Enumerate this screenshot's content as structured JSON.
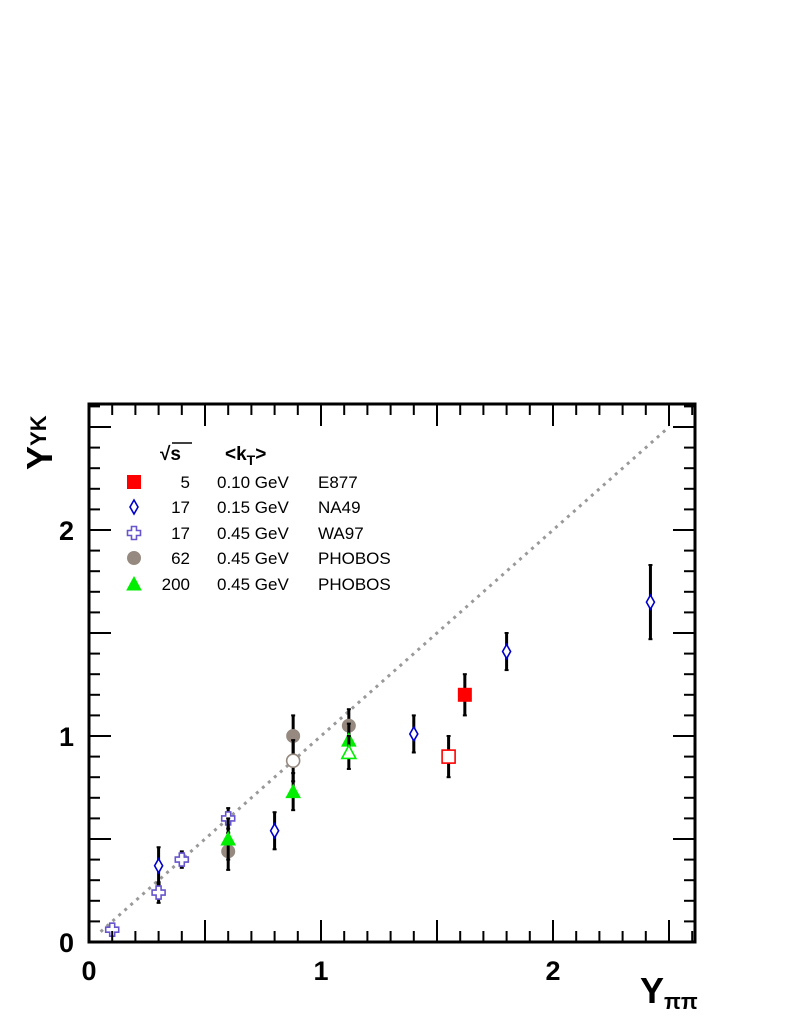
{
  "chart_data": {
    "type": "scatter",
    "xlabel": {
      "main": "Y",
      "sub": "ππ"
    },
    "ylabel": {
      "main": "Y",
      "sub": "YK"
    },
    "xlim": [
      0,
      2.6
    ],
    "ylim": [
      0,
      2.55
    ],
    "x_ticks": [
      0,
      1,
      2
    ],
    "y_ticks": [
      0,
      1,
      2
    ],
    "x_tick_labels": [
      "0",
      "1",
      "2"
    ],
    "y_tick_labels": [
      "0",
      "1",
      "2"
    ],
    "grid": false,
    "legend_position": "top-left",
    "legend_headers": {
      "sqrt_s": "√s",
      "kt": "<k",
      "kt_sub": "T",
      "kt_close": ">"
    },
    "reference_line": {
      "x": [
        0.05,
        2.5
      ],
      "y": [
        0.05,
        2.5
      ],
      "style": "dotted",
      "color": "#999999"
    },
    "series": [
      {
        "name": "E877",
        "sqrt_s": "5",
        "kt": "0.10 GeV",
        "marker": "square",
        "color": "#ff0000",
        "points": [
          {
            "x": 1.62,
            "y": 1.2,
            "err": 0.1,
            "filled": true
          },
          {
            "x": 1.55,
            "y": 0.9,
            "err": 0.1,
            "filled": false
          }
        ]
      },
      {
        "name": "NA49",
        "sqrt_s": "17",
        "kt": "0.15 GeV",
        "marker": "diamond",
        "color": "#0000cc",
        "points": [
          {
            "x": 0.3,
            "y": 0.37,
            "err": 0.09,
            "filled": false
          },
          {
            "x": 0.8,
            "y": 0.54,
            "err": 0.09,
            "filled": false
          },
          {
            "x": 1.4,
            "y": 1.01,
            "err": 0.09,
            "filled": false
          },
          {
            "x": 1.8,
            "y": 1.41,
            "err": 0.09,
            "filled": false
          },
          {
            "x": 2.42,
            "y": 1.65,
            "err": 0.18,
            "filled": false
          }
        ]
      },
      {
        "name": "WA97",
        "sqrt_s": "17",
        "kt": "0.45 GeV",
        "marker": "cross",
        "color": "#6655cc",
        "points": [
          {
            "x": 0.1,
            "y": 0.06,
            "err": 0.03,
            "filled": false
          },
          {
            "x": 0.3,
            "y": 0.24,
            "err": 0.05,
            "filled": false
          },
          {
            "x": 0.4,
            "y": 0.4,
            "err": 0.04,
            "filled": false
          },
          {
            "x": 0.6,
            "y": 0.6,
            "err": 0.05,
            "filled": false
          }
        ]
      },
      {
        "name": "PHOBOS",
        "sqrt_s": "62",
        "kt": "0.45 GeV",
        "marker": "circle",
        "color": "#968a80",
        "points": [
          {
            "x": 0.6,
            "y": 0.44,
            "err": 0.09,
            "filled": true
          },
          {
            "x": 0.88,
            "y": 1.0,
            "err": 0.1,
            "filled": true
          },
          {
            "x": 0.88,
            "y": 0.88,
            "err": 0.1,
            "filled": false
          },
          {
            "x": 1.12,
            "y": 1.05,
            "err": 0.08,
            "filled": true
          }
        ]
      },
      {
        "name": "PHOBOS",
        "sqrt_s": "200",
        "kt": "0.45 GeV",
        "marker": "triangle",
        "color": "#00ee00",
        "points": [
          {
            "x": 0.6,
            "y": 0.5,
            "err": 0.1,
            "filled": true
          },
          {
            "x": 0.88,
            "y": 0.73,
            "err": 0.09,
            "filled": true
          },
          {
            "x": 1.12,
            "y": 0.98,
            "err": 0.08,
            "filled": true
          },
          {
            "x": 1.12,
            "y": 0.92,
            "err": 0.08,
            "filled": false
          }
        ]
      }
    ]
  }
}
